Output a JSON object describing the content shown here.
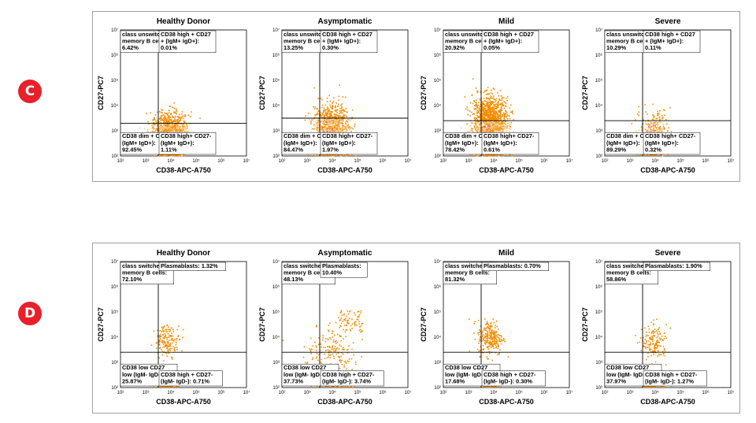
{
  "colors": {
    "badge": "#e8202a",
    "dot": "#f28c00",
    "dot_light": "#f7c98a",
    "magenta": "#e040e0",
    "line": "#000000"
  },
  "panels": [
    {
      "label": "C",
      "chart_data": [
        {
          "type": "scatter",
          "title": "Healthy Donor",
          "xlabel": "CD38-APC-A750",
          "ylabel": "CD27-PC7",
          "xscale": "log",
          "yscale": "log",
          "xlim": [
            100,
            10000000
          ],
          "ylim": [
            100,
            10000000
          ],
          "xticks": [
            "10²",
            "10³",
            "10⁴",
            "10⁵",
            "10⁶",
            "10⁷"
          ],
          "yticks": [
            "10²",
            "10³",
            "10⁴",
            "10⁵",
            "10⁶",
            "10⁷"
          ],
          "gates": {
            "top_left": [
              "class unswitched",
              "memory B cells:",
              "6.42%"
            ],
            "top_right": [
              "CD38 high + CD27",
              "+ (IgM+ IgD+):",
              "0.01%"
            ],
            "bottom_left": [
              "CD38 dim + CD27-",
              "(IgM+ IgD+):",
              "92.45%"
            ],
            "bottom_right": [
              "CD38 high+ CD27-",
              "(IgM+ IgD+):",
              "1.11%"
            ]
          },
          "cluster": {
            "x": 8000,
            "y": 1200,
            "density": "high"
          }
        },
        {
          "type": "scatter",
          "title": "Asymptomatic",
          "xlabel": "CD38-APC-A750",
          "ylabel": "CD27-PC7",
          "xscale": "log",
          "yscale": "log",
          "xlim": [
            100,
            10000000
          ],
          "ylim": [
            100,
            10000000
          ],
          "xticks": [
            "10²",
            "10³",
            "10⁴",
            "10⁵",
            "10⁶",
            "10⁷"
          ],
          "yticks": [
            "10²",
            "10³",
            "10⁴",
            "10⁵",
            "10⁶",
            "10⁷"
          ],
          "gates": {
            "top_left": [
              "class unswitched",
              "memory B cells:",
              "13.25%"
            ],
            "top_right": [
              "CD38 high + CD27",
              "+ (IgM+ IgD+):",
              "0.30%"
            ],
            "bottom_left": [
              "CD38 dim + CD27-",
              "(IgM+ IgD+):",
              "84.47%"
            ],
            "bottom_right": [
              "CD38 high+ CD27-",
              "(IgM+ IgD+):",
              "1.97%"
            ]
          },
          "cluster": {
            "x": 9000,
            "y": 2000,
            "density": "high"
          }
        },
        {
          "type": "scatter",
          "title": "Mild",
          "xlabel": "CD38-APC-A750",
          "ylabel": "CD27-PC7",
          "xscale": "log",
          "yscale": "log",
          "xlim": [
            100,
            10000000
          ],
          "ylim": [
            100,
            10000000
          ],
          "xticks": [
            "10²",
            "10³",
            "10⁴",
            "10⁵",
            "10⁶",
            "10⁷"
          ],
          "yticks": [
            "10²",
            "10³",
            "10⁴",
            "10⁵",
            "10⁶",
            "10⁷"
          ],
          "gates": {
            "top_left": [
              "class unswitched",
              "memory B cells:",
              "20.92%"
            ],
            "top_right": [
              "CD38 high + CD27",
              "+ (IgM+ IgD+):",
              "0.05%"
            ],
            "bottom_left": [
              "CD38 dim + CD27-",
              "(IgM+ IgD+):",
              "78.42%"
            ],
            "bottom_right": [
              "CD38 high+ CD27-",
              "(IgM+ IgD+):",
              "0.61%"
            ]
          },
          "cluster": {
            "x": 7000,
            "y": 3000,
            "density": "very high"
          }
        },
        {
          "type": "scatter",
          "title": "Severe",
          "xlabel": "CD38-APC-A750",
          "ylabel": "CD27-PC7",
          "xscale": "log",
          "yscale": "log",
          "xlim": [
            100,
            10000000
          ],
          "ylim": [
            100,
            10000000
          ],
          "xticks": [
            "10²",
            "10³",
            "10⁴",
            "10⁵",
            "10⁶",
            "10⁷"
          ],
          "yticks": [
            "10²",
            "10³",
            "10⁴",
            "10⁵",
            "10⁶",
            "10⁷"
          ],
          "gates": {
            "top_left": [
              "class unswitched",
              "memory B cells:",
              "10.29%"
            ],
            "top_right": [
              "CD38 high + CD27",
              "+ (IgM+ IgD+):",
              "0.11%"
            ],
            "bottom_left": [
              "CD38 dim + CD27-",
              "(IgM+ IgD+):",
              "89.29%"
            ],
            "bottom_right": [
              "CD38 high+ CD27-",
              "(IgM+ IgD+):",
              "0.32%"
            ]
          },
          "cluster": {
            "x": 9000,
            "y": 1500,
            "density": "medium"
          }
        }
      ]
    },
    {
      "label": "D",
      "chart_data": [
        {
          "type": "scatter",
          "title": "Healthy Donor",
          "xlabel": "CD38-APC-A750",
          "ylabel": "CD27-PC7",
          "xscale": "log",
          "yscale": "log",
          "xlim": [
            100,
            10000000
          ],
          "ylim": [
            100,
            10000000
          ],
          "xticks": [
            "10²",
            "10³",
            "10⁴",
            "10⁵",
            "10⁶",
            "10⁷"
          ],
          "yticks": [
            "10²",
            "10³",
            "10⁴",
            "10⁵",
            "10⁶",
            "10⁷"
          ],
          "gates": {
            "top_left": [
              "class switched",
              "memory B cells:",
              "72.10%"
            ],
            "top_right": [
              "Plasmablasts: 1.32%"
            ],
            "bottom_left": [
              "CD38 low CD27",
              "low (IgM- IgD-):",
              "25.87%"
            ],
            "bottom_right": [
              "CD38 high + CD27-",
              "(IgM- IgD-): 0.71%"
            ]
          },
          "cluster": {
            "x": 7000,
            "y": 8000,
            "density": "low"
          }
        },
        {
          "type": "scatter",
          "title": "Asymptomatic",
          "xlabel": "CD38-APC-A750",
          "ylabel": "CD27-PC7",
          "xscale": "log",
          "yscale": "log",
          "xlim": [
            100,
            10000000
          ],
          "ylim": [
            100,
            10000000
          ],
          "xticks": [
            "10²",
            "10³",
            "10⁴",
            "10⁵",
            "10⁶",
            "10⁷"
          ],
          "yticks": [
            "10²",
            "10³",
            "10⁴",
            "10⁵",
            "10⁶",
            "10⁷"
          ],
          "gates": {
            "top_left": [
              "class switched",
              "memory B cells:",
              "48.13%"
            ],
            "top_right": [
              "Plasmablasts:",
              "10.40%"
            ],
            "bottom_left": [
              "CD38 low CD27",
              "low (IgM- IgD-):",
              "37.73%"
            ],
            "bottom_right": [
              "CD38 high + CD27-",
              "(IgM- IgD-): 3.74%"
            ]
          },
          "cluster": {
            "x": 9000,
            "y": 3000,
            "density": "medium"
          }
        },
        {
          "type": "scatter",
          "title": "Mild",
          "xlabel": "CD38-APC-A750",
          "ylabel": "CD27-PC7",
          "xscale": "log",
          "yscale": "log",
          "xlim": [
            100,
            10000000
          ],
          "ylim": [
            100,
            10000000
          ],
          "xticks": [
            "10²",
            "10³",
            "10⁴",
            "10⁵",
            "10⁶",
            "10⁷"
          ],
          "yticks": [
            "10²",
            "10³",
            "10⁴",
            "10⁵",
            "10⁶",
            "10⁷"
          ],
          "gates": {
            "top_left": [
              "class switched",
              "memory B cells:",
              "81.32%"
            ],
            "top_right": [
              "Plasmablasts: 0.70%"
            ],
            "bottom_left": [
              "CD38 low CD27",
              "low (IgM- IgD-):",
              "17.68%"
            ],
            "bottom_right": [
              "CD38 high + CD27-",
              "(IgM- IgD-): 0.30%"
            ]
          },
          "cluster": {
            "x": 7000,
            "y": 10000,
            "density": "medium"
          }
        },
        {
          "type": "scatter",
          "title": "Severe",
          "xlabel": "CD38-APC-A750",
          "ylabel": "CD27-PC7",
          "xscale": "log",
          "yscale": "log",
          "xlim": [
            100,
            10000000
          ],
          "ylim": [
            100,
            10000000
          ],
          "xticks": [
            "10²",
            "10³",
            "10⁴",
            "10⁵",
            "10⁶",
            "10⁷"
          ],
          "yticks": [
            "10²",
            "10³",
            "10⁴",
            "10⁵",
            "10⁶",
            "10⁷"
          ],
          "gates": {
            "top_left": [
              "class switched",
              "memory B cells:",
              "58.86%"
            ],
            "top_right": [
              "Plasmablasts: 1.90%"
            ],
            "bottom_left": [
              "CD38 low CD27",
              "low (IgM- IgD-):",
              "37.97%"
            ],
            "bottom_right": [
              "CD38 high + CD27-",
              "(IgM- IgD-): 1.27%"
            ]
          },
          "cluster": {
            "x": 9000,
            "y": 6000,
            "density": "low"
          }
        }
      ]
    }
  ]
}
